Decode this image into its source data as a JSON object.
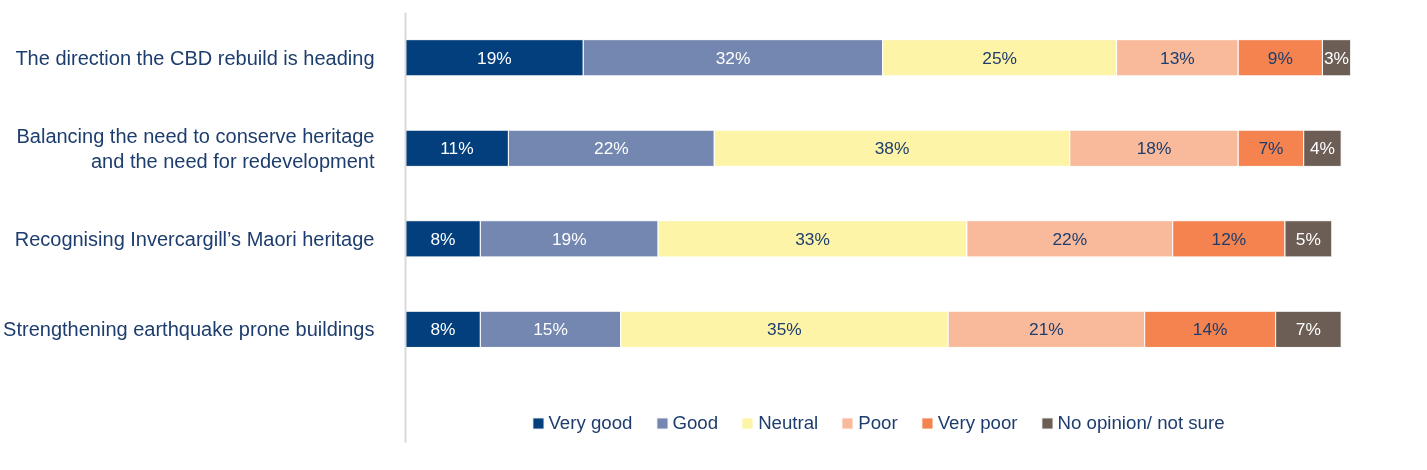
{
  "chart_data": {
    "type": "bar",
    "orientation": "horizontal",
    "stacked": true,
    "legend": "bottom",
    "grid": false,
    "tick_labels": "y",
    "categories": [
      "The direction the CBD rebuild is heading",
      "Balancing the need to conserve heritage\nand the need for redevelopment",
      "Recognising Invercargill’s Maori heritage",
      "Strengthening earthquake prone buildings"
    ],
    "series": [
      {
        "name": "Very good",
        "color": "#023f7c",
        "values": [
          19,
          11,
          8,
          8
        ],
        "value_labels": [
          "19%",
          "11%",
          "8%",
          "8%"
        ]
      },
      {
        "name": "Good",
        "color": "#7387b0",
        "values": [
          32,
          22,
          19,
          15
        ],
        "value_labels": [
          "32%",
          "22%",
          "19%",
          "15%"
        ]
      },
      {
        "name": "Neutral",
        "color": "#fdf4a8",
        "values": [
          25,
          38,
          33,
          35
        ],
        "value_labels": [
          "25%",
          "38%",
          "33%",
          "35%"
        ]
      },
      {
        "name": "Poor",
        "color": "#f9ba9b",
        "values": [
          13,
          18,
          22,
          21
        ],
        "value_labels": [
          "13%",
          "18%",
          "22%",
          "21%"
        ]
      },
      {
        "name": "Very poor",
        "color": "#f4834f",
        "values": [
          9,
          7,
          12,
          14
        ],
        "value_labels": [
          "9%",
          "7%",
          "12%",
          "14%"
        ]
      },
      {
        "name": "No opinion/ not sure",
        "color": "#6c5d55",
        "values": [
          3,
          4,
          5,
          7
        ],
        "value_labels": [
          "3%",
          "4%",
          "5%",
          "7%"
        ]
      }
    ]
  }
}
